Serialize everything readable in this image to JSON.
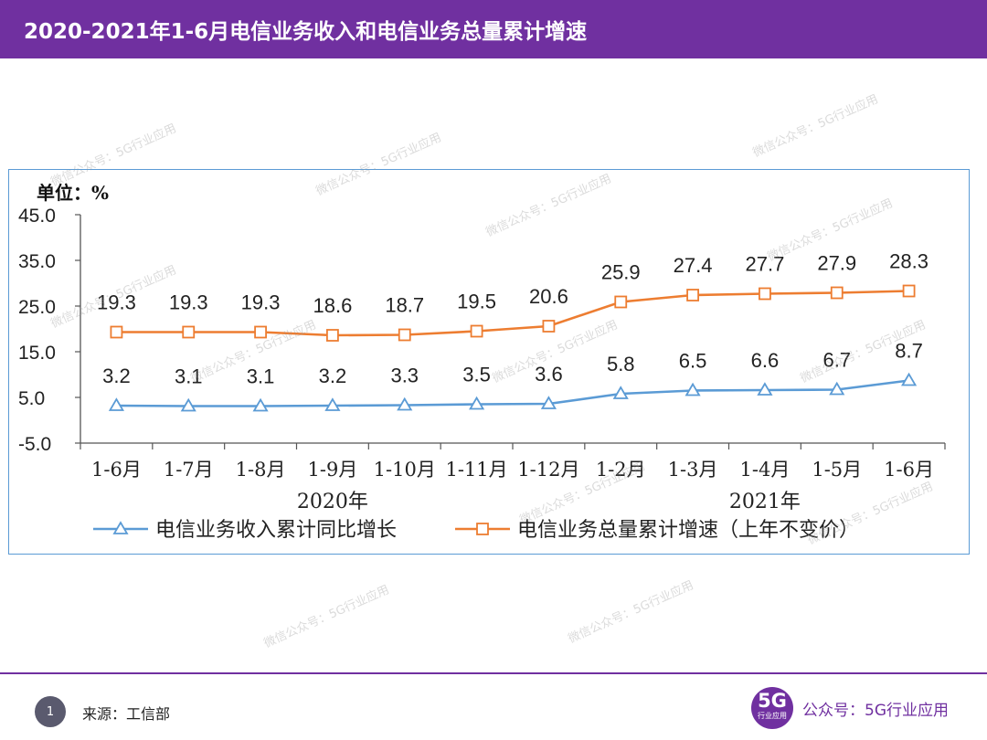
{
  "page": {
    "title": "2020-2021年1-6月电信业务收入和电信业务总量累计增速",
    "footer": {
      "page_number": "1",
      "source": "来源：工信部",
      "logo_main": "5G",
      "logo_sub": "行业应用",
      "account": "公众号：5G行业应用"
    },
    "watermark": "微信公众号：5G行业应用"
  },
  "chart_data": {
    "type": "line",
    "unit_label": "单位：%",
    "categories": [
      "1-6月",
      "1-7月",
      "1-8月",
      "1-9月",
      "1-10月",
      "1-11月",
      "1-12月",
      "1-2月",
      "1-3月",
      "1-4月",
      "1-5月",
      "1-6月"
    ],
    "groups": [
      {
        "label": "2020年",
        "from": 0,
        "to": 6
      },
      {
        "label": "2021年",
        "from": 7,
        "to": 11
      }
    ],
    "yticks": [
      "45.0",
      "35.0",
      "25.0",
      "15.0",
      "5.0",
      "-5.0"
    ],
    "ylim": [
      -5,
      45
    ],
    "series": [
      {
        "name": "电信业务收入累计同比增长",
        "color": "#5b9bd5",
        "marker": "triangle",
        "values": [
          3.2,
          3.1,
          3.1,
          3.2,
          3.3,
          3.5,
          3.6,
          5.8,
          6.5,
          6.6,
          6.7,
          8.7
        ],
        "labels": [
          "3.2",
          "3.1",
          "3.1",
          "3.2",
          "3.3",
          "3.5",
          "3.6",
          "5.8",
          "6.5",
          "6.6",
          "6.7",
          "8.7"
        ]
      },
      {
        "name": "电信业务总量累计增速（上年不变价）",
        "color": "#ed7d31",
        "marker": "square",
        "values": [
          19.3,
          19.3,
          19.3,
          18.6,
          18.7,
          19.5,
          20.6,
          25.9,
          27.4,
          27.7,
          27.9,
          28.3
        ],
        "labels": [
          "19.3",
          "19.3",
          "19.3",
          "18.6",
          "18.7",
          "19.5",
          "20.6",
          "25.9",
          "27.4",
          "27.7",
          "27.9",
          "28.3"
        ]
      }
    ],
    "legend_position": "bottom"
  }
}
